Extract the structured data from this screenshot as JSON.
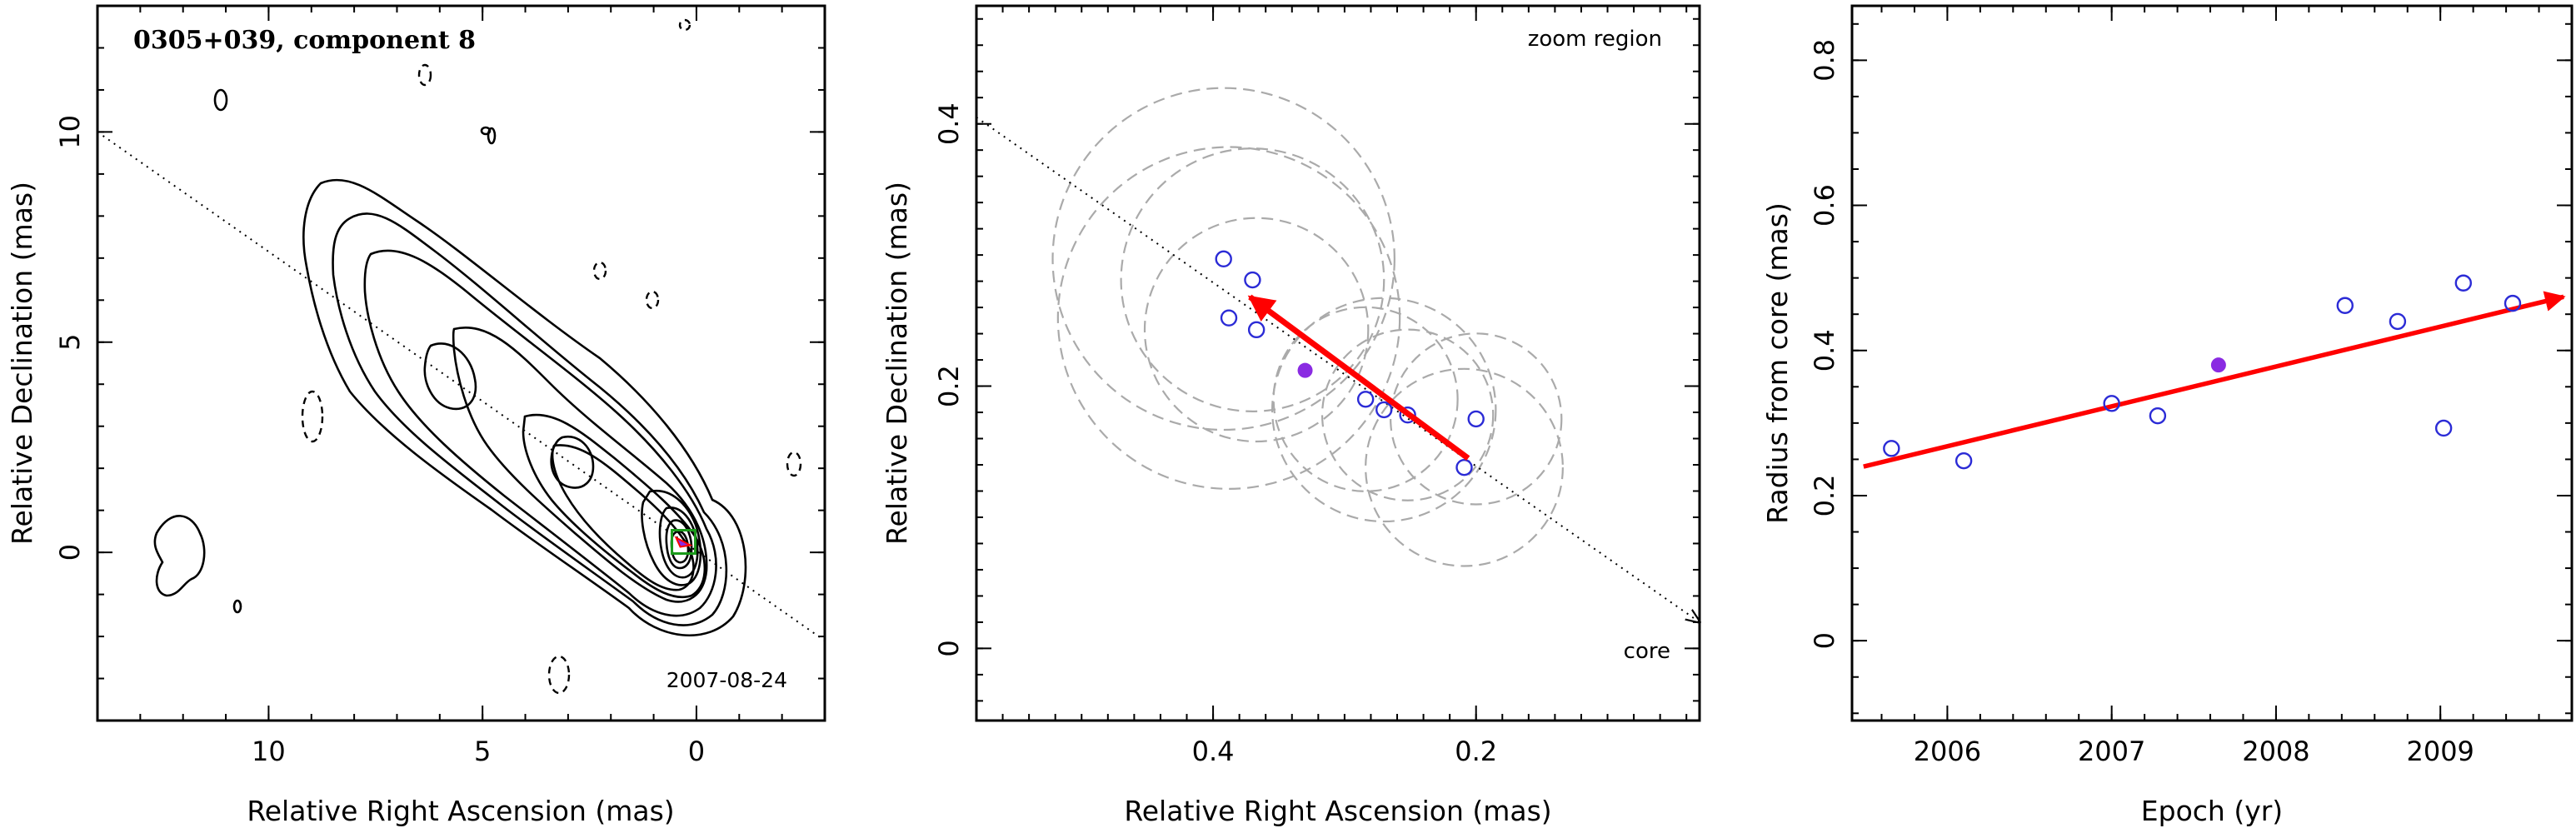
{
  "colors": {
    "arrow": "#ff0000",
    "open_point": "#2b2bd6",
    "filled_point": "#8a2be2",
    "box": "#1a9a1a",
    "circle": "#aaaaaa"
  },
  "chart_data": [
    {
      "type": "contour",
      "title": "0305+039, component 8",
      "date_label": "2007-08-24",
      "xlabel": "Relative Right Ascension (mas)",
      "ylabel": "Relative Declination (mas)",
      "xlim": [
        14,
        -3
      ],
      "ylim": [
        -4,
        13
      ],
      "xticks": [
        10,
        5,
        0
      ],
      "yticks": [
        0,
        5,
        10
      ],
      "jet_axis": [
        [
          14,
          10
        ],
        [
          -3,
          -2.1
        ]
      ],
      "component_box": {
        "x": 0.3,
        "y": 0.25
      }
    },
    {
      "type": "scatter",
      "label": "zoom region",
      "core_label": "core",
      "xlabel": "Relative Right Ascension (mas)",
      "ylabel": "Relative Declination (mas)",
      "xlim": [
        0.58,
        0.03
      ],
      "ylim": [
        -0.055,
        0.49
      ],
      "xticks": [
        0.4,
        0.2
      ],
      "yticks": [
        0,
        0.2,
        0.4
      ],
      "points": [
        {
          "x": 0.392,
          "y": 0.297
        },
        {
          "x": 0.388,
          "y": 0.252
        },
        {
          "x": 0.37,
          "y": 0.281
        },
        {
          "x": 0.367,
          "y": 0.243
        },
        {
          "x": 0.284,
          "y": 0.19
        },
        {
          "x": 0.27,
          "y": 0.182
        },
        {
          "x": 0.252,
          "y": 0.178
        },
        {
          "x": 0.2,
          "y": 0.175
        },
        {
          "x": 0.209,
          "y": 0.138
        }
      ],
      "highlight": {
        "x": 0.33,
        "y": 0.212
      },
      "arrow": {
        "from": [
          0.206,
          0.145
        ],
        "to": [
          0.372,
          0.268
        ]
      },
      "circles": [
        {
          "x": 0.392,
          "y": 0.297,
          "r": 0.13
        },
        {
          "x": 0.388,
          "y": 0.252,
          "r": 0.13
        },
        {
          "x": 0.37,
          "y": 0.281,
          "r": 0.1
        },
        {
          "x": 0.367,
          "y": 0.243,
          "r": 0.085
        },
        {
          "x": 0.284,
          "y": 0.19,
          "r": 0.07
        },
        {
          "x": 0.27,
          "y": 0.182,
          "r": 0.085
        },
        {
          "x": 0.252,
          "y": 0.178,
          "r": 0.065
        },
        {
          "x": 0.2,
          "y": 0.175,
          "r": 0.065
        },
        {
          "x": 0.209,
          "y": 0.138,
          "r": 0.075
        }
      ],
      "jet_axis": [
        [
          0.58,
          0.405
        ],
        [
          0.03,
          0.02
        ]
      ]
    },
    {
      "type": "scatter",
      "xlabel": "Epoch (yr)",
      "ylabel": "Radius from core (mas)",
      "xlim": [
        2005.42,
        2009.8
      ],
      "ylim": [
        -0.11,
        0.875
      ],
      "xticks": [
        2006,
        2007,
        2008,
        2009
      ],
      "yticks": [
        0,
        0.2,
        0.4,
        0.6,
        0.8
      ],
      "points": [
        {
          "x": 2005.66,
          "y": 0.265
        },
        {
          "x": 2006.1,
          "y": 0.248
        },
        {
          "x": 2007.0,
          "y": 0.327
        },
        {
          "x": 2007.28,
          "y": 0.31
        },
        {
          "x": 2008.42,
          "y": 0.462
        },
        {
          "x": 2008.74,
          "y": 0.44
        },
        {
          "x": 2009.02,
          "y": 0.293
        },
        {
          "x": 2009.14,
          "y": 0.493
        },
        {
          "x": 2009.44,
          "y": 0.465
        }
      ],
      "highlight": {
        "x": 2007.65,
        "y": 0.38
      },
      "fit_arrow": {
        "from": [
          2005.49,
          0.24
        ],
        "to": [
          2009.75,
          0.474
        ]
      }
    }
  ]
}
